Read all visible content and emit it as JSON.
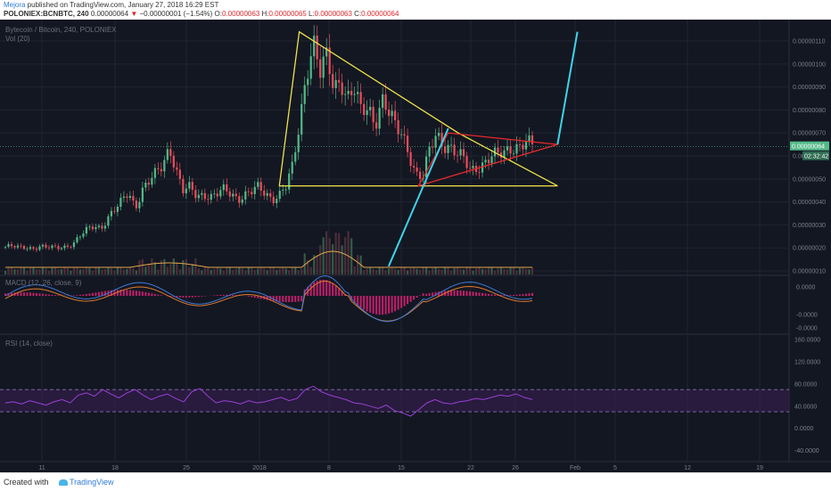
{
  "header": {
    "author": "Mejora",
    "published_text": " published on TradingView.com, January 27, 2018 16:29 EST",
    "symbol": "POLONIEX:BCNBTC, 240",
    "last": "0.00000064",
    "change": "−0.00000001 (−1.54%)",
    "o_label": "O:",
    "o": "0.00000063",
    "h_label": "H:",
    "h": "0.00000065",
    "l_label": "L:",
    "l": "0.00000063",
    "c_label": "C:",
    "c": "0.00000064"
  },
  "footer": {
    "created_with": "Created with",
    "brand": "TradingView"
  },
  "colors": {
    "background": "#131722",
    "grid": "#1f2433",
    "candle_up": "#53b987",
    "candle_down": "#eb4d5c",
    "ma": "#e2a54a",
    "trend_yellow": "#f0e34a",
    "trend_red": "#e8282b",
    "trend_cyan": "#3fd3e8",
    "rsi": "#9b3fd6",
    "macd_line": "#3d7bd6",
    "signal_line": "#e07a2a",
    "hist": "#c0206a"
  },
  "chart_data": [
    {
      "type": "candlestick",
      "title": "Bytecoin / Bitcoin, 240, POLONIEX",
      "subtitle": "Vol (20)",
      "x_ticks": [
        "11",
        "18",
        "25",
        "2018",
        "8",
        "15",
        "22",
        "26",
        "Feb",
        "5",
        "12",
        "19"
      ],
      "y_ticks": [
        "0.00000110",
        "0.00000100",
        "0.00000090",
        "0.00000080",
        "0.00000070",
        "0.00000060",
        "0.00000050",
        "0.00000040",
        "0.00000030",
        "0.00000020",
        "0.00000010"
      ],
      "ylim": [
        1e-07,
        1.17e-06
      ],
      "last_price_label": "0.00000064",
      "countdown_label": "02:32:42",
      "close_path": [
        2.05e-07,
        2.05e-07,
        2e-07,
        2.05e-07,
        2e-07,
        2.05e-07,
        2e-07,
        2e-07,
        2.05e-07,
        2.1e-07,
        2.2e-07,
        2.5e-07,
        2.8e-07,
        3e-07,
        2.9e-07,
        3.3e-07,
        3.6e-07,
        4e-07,
        4.5e-07,
        3.8e-07,
        4.5e-07,
        4.8e-07,
        5.2e-07,
        5.7e-07,
        6.5e-07,
        5.3e-07,
        4.4e-07,
        4.6e-07,
        4.3e-07,
        4.4e-07,
        4.2e-07,
        4.3e-07,
        4.5e-07,
        4.4e-07,
        4.2e-07,
        4.3e-07,
        4.4e-07,
        4.6e-07,
        4.4e-07,
        4.2e-07,
        4.3e-07,
        4.6e-07,
        5.5e-07,
        7.5e-07,
        9.8e-07,
        1.1e-06,
        9.5e-07,
        1.02e-06,
        9e-07,
        9.5e-07,
        8.5e-07,
        8.8e-07,
        7.8e-07,
        8.2e-07,
        7.5e-07,
        8.5e-07,
        7.8e-07,
        7.2e-07,
        7e-07,
        6.2e-07,
        5.2e-07,
        5e-07,
        6.2e-07,
        7e-07,
        6.6e-07,
        6.4e-07,
        6e-07,
        5.8e-07,
        5.4e-07,
        5.6e-07,
        5.7e-07,
        5.9e-07,
        6e-07,
        6.2e-07,
        6.5e-07,
        6.4e-07,
        6.5e-07,
        6.4e-07
      ],
      "trendlines": [
        {
          "color": "yellow",
          "points": [
            [
              "2018-01-05",
              1.14e-06
            ],
            [
              "2018-01-21",
              7e-07
            ],
            [
              "2018-01-31",
              4.7e-07
            ],
            [
              "2018-01-03",
              4.7e-07
            ]
          ]
        },
        {
          "color": "red",
          "points": [
            [
              "2018-01-17",
              4.7e-07
            ],
            [
              "2018-01-31",
              6.5e-07
            ],
            [
              "2018-01-20",
              7e-07
            ]
          ]
        },
        {
          "color": "cyan",
          "points": [
            [
              "2018-01-14",
              1.2e-07
            ],
            [
              "2018-01-20",
              7.2e-07
            ]
          ]
        },
        {
          "color": "cyan",
          "points": [
            [
              "2018-01-31",
              6.5e-07
            ],
            [
              "2018-02-02",
              1.14e-06
            ]
          ]
        }
      ]
    },
    {
      "type": "line",
      "title": "MACD (12, 26, close, 9)",
      "y_ticks": [
        "0.0000",
        "-0.0000",
        "-0.0000"
      ]
    },
    {
      "type": "line",
      "title": "RSI (14, close)",
      "y_ticks": [
        "160.0000",
        "120.0000",
        "80.0000",
        "40.0000",
        "0.0000",
        "-40.0000"
      ],
      "ylim": [
        -60,
        170
      ],
      "band": [
        30,
        70
      ],
      "values": [
        46,
        48,
        44,
        50,
        46,
        42,
        48,
        52,
        46,
        60,
        64,
        58,
        70,
        62,
        55,
        64,
        70,
        60,
        52,
        58,
        62,
        54,
        48,
        66,
        72,
        58,
        46,
        50,
        48,
        44,
        50,
        46,
        48,
        52,
        56,
        50,
        54,
        70,
        76,
        66,
        60,
        56,
        52,
        46,
        44,
        40,
        36,
        42,
        32,
        28,
        22,
        34,
        46,
        52,
        46,
        44,
        48,
        50,
        54,
        52,
        56,
        60,
        58,
        62,
        56,
        52
      ]
    }
  ]
}
